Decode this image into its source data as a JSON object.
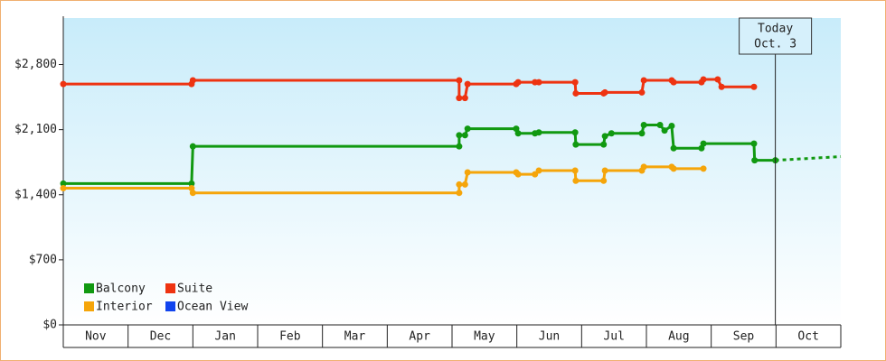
{
  "chart_data": {
    "type": "line",
    "ylim": [
      0,
      3300
    ],
    "yticks": [
      {
        "value": 0,
        "label": "$0"
      },
      {
        "value": 700,
        "label": "$700"
      },
      {
        "value": 1400,
        "label": "$1,400"
      },
      {
        "value": 2100,
        "label": "$2,100"
      },
      {
        "value": 2800,
        "label": "$2,800"
      }
    ],
    "xlim": [
      0,
      12
    ],
    "xticks": [
      {
        "value": 0.5,
        "label": "Nov"
      },
      {
        "value": 1.5,
        "label": "Dec"
      },
      {
        "value": 2.5,
        "label": "Jan"
      },
      {
        "value": 3.5,
        "label": "Feb"
      },
      {
        "value": 4.5,
        "label": "Mar"
      },
      {
        "value": 5.5,
        "label": "Apr"
      },
      {
        "value": 6.5,
        "label": "May"
      },
      {
        "value": 7.5,
        "label": "Jun"
      },
      {
        "value": 8.5,
        "label": "Jul"
      },
      {
        "value": 9.5,
        "label": "Aug"
      },
      {
        "value": 10.5,
        "label": "Sep"
      },
      {
        "value": 11.5,
        "label": "Oct"
      }
    ],
    "series": [
      {
        "name": "Balcony",
        "color": "#119911",
        "x": [
          0,
          1.98,
          2.0,
          6.11,
          6.11,
          6.2,
          6.24,
          6.99,
          7.02,
          7.28,
          7.34,
          7.9,
          7.91,
          8.34,
          8.36,
          8.46,
          8.93,
          8.96,
          9.21,
          9.28,
          9.39,
          9.42,
          9.85,
          9.88,
          10.66,
          10.67,
          10.99
        ],
        "values": [
          1520,
          1520,
          1920,
          1920,
          2040,
          2040,
          2110,
          2110,
          2060,
          2060,
          2070,
          2070,
          1940,
          1940,
          2030,
          2060,
          2060,
          2150,
          2150,
          2090,
          2140,
          1900,
          1900,
          1950,
          1950,
          1770,
          1770
        ],
        "projection": {
          "x": [
            10.99,
            12
          ],
          "values": [
            1770,
            1810
          ]
        }
      },
      {
        "name": "Suite",
        "color": "#ee3311",
        "x": [
          0,
          1.98,
          2.0,
          6.11,
          6.11,
          6.2,
          6.24,
          6.99,
          7.02,
          7.28,
          7.34,
          7.9,
          7.91,
          8.34,
          8.36,
          8.93,
          8.96,
          9.39,
          9.42,
          9.85,
          9.88,
          10.1,
          10.16,
          10.66
        ],
        "values": [
          2590,
          2590,
          2630,
          2630,
          2440,
          2440,
          2590,
          2590,
          2610,
          2610,
          2610,
          2610,
          2490,
          2490,
          2500,
          2500,
          2630,
          2630,
          2610,
          2610,
          2640,
          2640,
          2560,
          2560
        ]
      },
      {
        "name": "Interior",
        "color": "#f5a50a",
        "x": [
          0,
          1.98,
          2.0,
          6.11,
          6.11,
          6.2,
          6.24,
          6.99,
          7.02,
          7.28,
          7.34,
          7.9,
          7.91,
          8.34,
          8.36,
          8.93,
          8.96,
          9.39,
          9.42,
          9.88
        ],
        "values": [
          1470,
          1470,
          1420,
          1420,
          1510,
          1510,
          1640,
          1640,
          1620,
          1620,
          1660,
          1660,
          1550,
          1550,
          1660,
          1660,
          1700,
          1700,
          1680,
          1680
        ]
      },
      {
        "name": "Ocean View",
        "color": "#1144ee",
        "x": [],
        "values": []
      }
    ],
    "annotation": {
      "x": 10.99,
      "lines": [
        "Today",
        "Oct. 3"
      ]
    }
  }
}
